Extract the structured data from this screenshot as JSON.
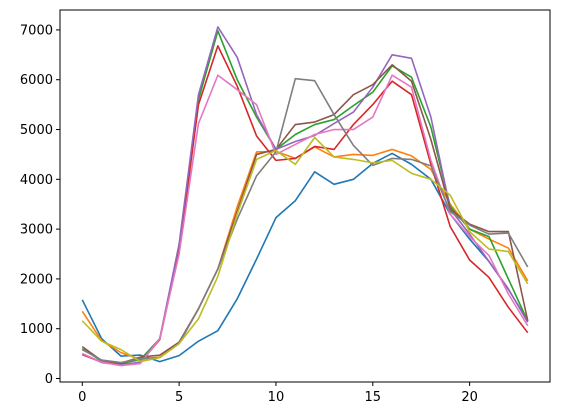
{
  "chart_data": {
    "type": "line",
    "title": "",
    "xlabel": "",
    "ylabel": "",
    "xlim": [
      -1.15,
      24.15
    ],
    "ylim": [
      -70,
      7400
    ],
    "xticks": [
      0,
      5,
      10,
      15,
      20
    ],
    "yticks": [
      0,
      1000,
      2000,
      3000,
      4000,
      5000,
      6000,
      7000
    ],
    "grid": false,
    "x": [
      0,
      1,
      2,
      3,
      4,
      5,
      6,
      7,
      8,
      9,
      10,
      11,
      12,
      13,
      14,
      15,
      16,
      17,
      18,
      19,
      20,
      21,
      22,
      23
    ],
    "series": [
      {
        "color": "#1f77b4",
        "values": [
          1580,
          800,
          450,
          470,
          340,
          460,
          750,
          960,
          1600,
          2400,
          3230,
          3570,
          4150,
          3900,
          4000,
          4320,
          4520,
          4300,
          4000,
          3300,
          2800,
          2350,
          1790,
          1160
        ]
      },
      {
        "color": "#ff7f0e",
        "values": [
          1350,
          760,
          520,
          380,
          430,
          720,
          1400,
          2200,
          3450,
          4550,
          4560,
          4420,
          4650,
          4450,
          4500,
          4480,
          4600,
          4470,
          4200,
          3500,
          3000,
          2800,
          2620,
          1960
        ]
      },
      {
        "color": "#2ca02c",
        "values": [
          600,
          350,
          300,
          380,
          800,
          2600,
          5600,
          6980,
          6000,
          5250,
          4600,
          4900,
          5100,
          5200,
          5480,
          5750,
          6280,
          6050,
          5050,
          3450,
          3000,
          2850,
          2000,
          1150
        ]
      },
      {
        "color": "#d62728",
        "values": [
          480,
          330,
          280,
          320,
          780,
          2550,
          5500,
          6680,
          5870,
          4870,
          4380,
          4420,
          4660,
          4600,
          5100,
          5500,
          5970,
          5700,
          4300,
          3050,
          2380,
          2030,
          1430,
          920
        ]
      },
      {
        "color": "#9467bd",
        "values": [
          500,
          320,
          270,
          330,
          800,
          2700,
          5700,
          7060,
          6450,
          5300,
          4600,
          4760,
          4880,
          5120,
          5350,
          5850,
          6500,
          6430,
          5250,
          3400,
          2900,
          2350,
          1800,
          1130
        ]
      },
      {
        "color": "#8c564b",
        "values": [
          640,
          360,
          310,
          430,
          470,
          730,
          1400,
          2200,
          3350,
          4500,
          4600,
          5100,
          5150,
          5300,
          5700,
          5900,
          6300,
          5970,
          4800,
          3400,
          3100,
          2950,
          2950,
          1160
        ]
      },
      {
        "color": "#e377c2",
        "values": [
          500,
          330,
          260,
          300,
          800,
          2500,
          5120,
          6090,
          5800,
          5500,
          4500,
          4700,
          4900,
          5000,
          5000,
          5250,
          6090,
          5850,
          4380,
          3300,
          2850,
          2470,
          1700,
          1060
        ]
      },
      {
        "color": "#7f7f7f",
        "values": [
          580,
          370,
          320,
          400,
          420,
          700,
          1400,
          2200,
          3200,
          4070,
          4550,
          6020,
          5980,
          5300,
          4680,
          4280,
          4420,
          4400,
          4270,
          3350,
          3080,
          2900,
          2920,
          2240
        ]
      },
      {
        "color": "#bcbd22",
        "values": [
          1160,
          750,
          580,
          340,
          420,
          700,
          1200,
          2050,
          3300,
          4400,
          4580,
          4300,
          4840,
          4450,
          4400,
          4330,
          4380,
          4120,
          4000,
          3680,
          2950,
          2600,
          2550,
          1900
        ]
      }
    ]
  }
}
